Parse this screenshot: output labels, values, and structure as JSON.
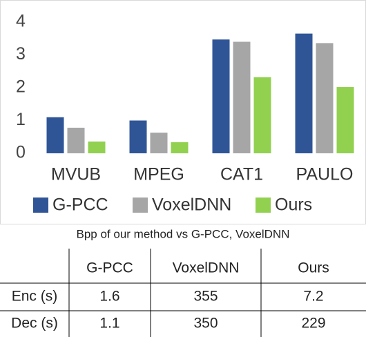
{
  "chart_data": {
    "type": "bar",
    "categories": [
      "MVUB",
      "MPEG",
      "CAT1",
      "PAULO"
    ],
    "series": [
      {
        "name": "G-PCC",
        "color": "#2f5597",
        "values": [
          1.1,
          1.0,
          3.47,
          3.65
        ]
      },
      {
        "name": "VoxelDNN",
        "color": "#a6a6a6",
        "values": [
          0.78,
          0.63,
          3.4,
          3.36
        ]
      },
      {
        "name": "Ours",
        "color": "#92d050",
        "values": [
          0.36,
          0.34,
          2.32,
          2.02
        ]
      }
    ],
    "ylim": [
      0,
      4
    ],
    "yticks": [
      0,
      1,
      2,
      3,
      4
    ],
    "grid": false,
    "legend": "bottom"
  },
  "caption": "Bpp of our method vs G-PCC, VoxelDNN",
  "table": {
    "header": [
      "G-PCC",
      "VoxelDNN",
      "Ours"
    ],
    "rows": [
      [
        "Enc (s)",
        1.6,
        355,
        7.2
      ],
      [
        "Dec (s)",
        1.1,
        350,
        229
      ]
    ]
  }
}
